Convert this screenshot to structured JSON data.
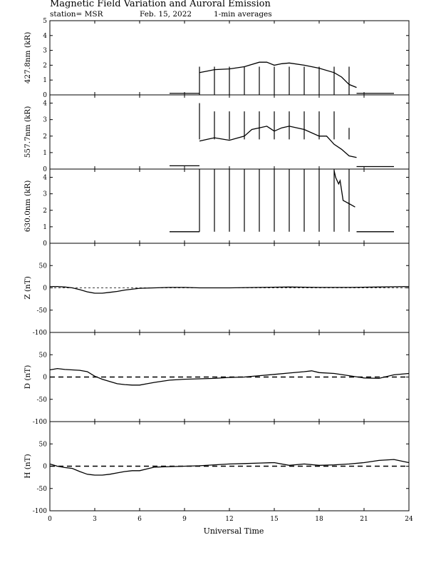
{
  "header": {
    "title": "Magnetic Field Variation and Auroral Emission",
    "station": "station= MSR",
    "date": "Feb. 15, 2022",
    "averaging": "1-min averages"
  },
  "colors": {
    "ink": "#000000",
    "background": "#ffffff"
  },
  "chart_data": [
    {
      "type": "line",
      "ylabel": "427.8nm (kR)",
      "ylim": [
        0,
        5
      ],
      "yticks": [
        0,
        1,
        2,
        3,
        4,
        5
      ],
      "xlim": [
        0,
        24
      ],
      "series": [
        {
          "x": [
            8.0,
            10.0
          ],
          "y": [
            0.1,
            0.1
          ]
        },
        {
          "x": [
            10.0,
            10.5,
            11,
            12,
            13,
            14,
            14.5,
            15,
            15.5,
            16,
            17,
            18,
            19,
            19.5,
            20,
            20.5
          ],
          "y": [
            1.5,
            1.6,
            1.7,
            1.75,
            1.9,
            2.2,
            2.2,
            2.0,
            2.1,
            2.15,
            2.0,
            1.8,
            1.5,
            1.2,
            0.7,
            0.5
          ]
        },
        {
          "x": [
            20.5,
            23.0
          ],
          "y": [
            0.1,
            0.1
          ]
        }
      ],
      "spikes": [
        {
          "x": 10,
          "y": 0
        },
        {
          "x": 11,
          "y": 0
        },
        {
          "x": 12,
          "y": 0
        },
        {
          "x": 13,
          "y": 0
        },
        {
          "x": 14,
          "y": 0
        },
        {
          "x": 15,
          "y": 0
        },
        {
          "x": 16,
          "y": 0
        },
        {
          "x": 17,
          "y": 0
        },
        {
          "x": 18,
          "y": 0
        },
        {
          "x": 19,
          "y": 0
        },
        {
          "x": 20,
          "y": 0
        }
      ],
      "zero_line": false
    },
    {
      "type": "line",
      "ylabel": "557.7nm (kR)",
      "ylim": [
        0,
        4.5
      ],
      "yticks": [
        0,
        1,
        2,
        3,
        4
      ],
      "xlim": [
        0,
        24
      ],
      "series": [
        {
          "x": [
            8.0,
            10.0
          ],
          "y": [
            0.2,
            0.2
          ]
        },
        {
          "x": [
            10.0,
            10.5,
            11,
            12,
            13,
            13.5,
            14,
            14.5,
            15,
            15.5,
            16,
            17,
            18,
            18.5,
            19,
            19.5,
            20,
            20.5
          ],
          "y": [
            1.7,
            1.8,
            1.9,
            1.75,
            2.0,
            2.4,
            2.5,
            2.6,
            2.3,
            2.5,
            2.6,
            2.4,
            2.0,
            2.0,
            1.5,
            1.2,
            0.8,
            0.7
          ]
        },
        {
          "x": [
            20.5,
            23.0
          ],
          "y": [
            0.15,
            0.15
          ]
        }
      ],
      "spikes": [
        {
          "x": 10,
          "y": 4.0
        },
        {
          "x": 11,
          "y": 3.5
        },
        {
          "x": 12,
          "y": 3.5
        },
        {
          "x": 13,
          "y": 3.5
        },
        {
          "x": 14,
          "y": 3.5
        },
        {
          "x": 15,
          "y": 3.5
        },
        {
          "x": 16,
          "y": 3.5
        },
        {
          "x": 17,
          "y": 3.5
        },
        {
          "x": 18,
          "y": 3.5
        },
        {
          "x": 19,
          "y": 3.5
        },
        {
          "x": 20,
          "y": 2.5
        }
      ],
      "zero_line": false
    },
    {
      "type": "line",
      "ylabel": "630.0nm (kR)",
      "ylim": [
        0,
        4.5
      ],
      "yticks": [
        0,
        1,
        2,
        3,
        4
      ],
      "xlim": [
        0,
        24
      ],
      "series": [
        {
          "x": [
            8.0,
            10.0
          ],
          "y": [
            0.7,
            0.7
          ]
        },
        {
          "x": [
            19.0,
            19.1,
            19.3,
            19.4,
            19.5,
            19.6,
            19.8,
            20.0,
            20.2,
            20.4
          ],
          "y": [
            4.4,
            4.0,
            3.6,
            3.8,
            3.2,
            2.6,
            2.5,
            2.4,
            2.3,
            2.2
          ]
        },
        {
          "x": [
            20.5,
            23.0
          ],
          "y": [
            0.7,
            0.7
          ]
        }
      ],
      "spikes": [
        {
          "x": 10,
          "y": 0.7
        },
        {
          "x": 11,
          "y": 0.7
        },
        {
          "x": 12,
          "y": 0.7
        },
        {
          "x": 13,
          "y": 0.7
        },
        {
          "x": 14,
          "y": 0.7
        },
        {
          "x": 15,
          "y": 0.7
        },
        {
          "x": 16,
          "y": 0.7
        },
        {
          "x": 17,
          "y": 0.7
        },
        {
          "x": 18,
          "y": 0.7
        },
        {
          "x": 19,
          "y": 0.7
        },
        {
          "x": 20,
          "y": 0.7
        }
      ],
      "spike_top": 4.5,
      "zero_line": false
    },
    {
      "type": "line",
      "ylabel": "Z (nT)",
      "ylim": [
        -100,
        100
      ],
      "yticks": [
        -100,
        -50,
        0,
        50
      ],
      "xlim": [
        0,
        24
      ],
      "series": [
        {
          "x": [
            0,
            0.5,
            1,
            1.5,
            2,
            2.5,
            3,
            3.5,
            4,
            4.5,
            5,
            5.5,
            6,
            7,
            8,
            9,
            10,
            12,
            14,
            16,
            18,
            20,
            22,
            24
          ],
          "y": [
            3,
            3,
            2,
            0,
            -4,
            -9,
            -12,
            -12,
            -10,
            -8,
            -5,
            -3,
            -1,
            0,
            1,
            1,
            0,
            0,
            1,
            2,
            1,
            1,
            2,
            3
          ]
        }
      ],
      "zero_line": true,
      "zero_dash": "short"
    },
    {
      "type": "line",
      "ylabel": "D (nT)",
      "ylim": [
        -100,
        100
      ],
      "yticks": [
        -100,
        -50,
        0,
        50
      ],
      "xlim": [
        0,
        24
      ],
      "series": [
        {
          "x": [
            0,
            0.5,
            1,
            1.5,
            2,
            2.5,
            3,
            3.5,
            4,
            4.5,
            5,
            5.5,
            6,
            6.5,
            7,
            8,
            9,
            10,
            11,
            12,
            13,
            14,
            15,
            16,
            17,
            17.5,
            18,
            19,
            20,
            21,
            22,
            23,
            24
          ],
          "y": [
            16,
            19,
            17,
            16,
            15,
            12,
            2,
            -5,
            -10,
            -15,
            -17,
            -18,
            -18,
            -15,
            -12,
            -7,
            -5,
            -4,
            -3,
            -1,
            0,
            3,
            6,
            9,
            12,
            14,
            10,
            8,
            3,
            -2,
            -3,
            5,
            8
          ]
        }
      ],
      "zero_line": true,
      "zero_dash": "long"
    },
    {
      "type": "line",
      "ylabel": "H (nT)",
      "ylim": [
        -100,
        100
      ],
      "yticks": [
        -100,
        -50,
        0,
        50
      ],
      "xlim": [
        0,
        24
      ],
      "series": [
        {
          "x": [
            0,
            0.5,
            1,
            1.5,
            2,
            2.5,
            3,
            3.5,
            4,
            4.5,
            5,
            5.5,
            6,
            6.5,
            7,
            8,
            9,
            10,
            11,
            12,
            13,
            14,
            15,
            16,
            17,
            18,
            19,
            20,
            21,
            22,
            23,
            24
          ],
          "y": [
            5,
            0,
            -3,
            -5,
            -12,
            -18,
            -20,
            -20,
            -18,
            -15,
            -12,
            -10,
            -10,
            -6,
            -2,
            -1,
            0,
            1,
            3,
            5,
            6,
            7,
            8,
            2,
            5,
            2,
            3,
            5,
            8,
            13,
            15,
            8
          ]
        }
      ],
      "zero_line": true,
      "zero_dash": "long"
    }
  ],
  "xaxis": {
    "label": "Universal Time",
    "ticks": [
      0,
      3,
      6,
      9,
      12,
      15,
      18,
      21,
      24
    ],
    "range": [
      0,
      24
    ]
  }
}
